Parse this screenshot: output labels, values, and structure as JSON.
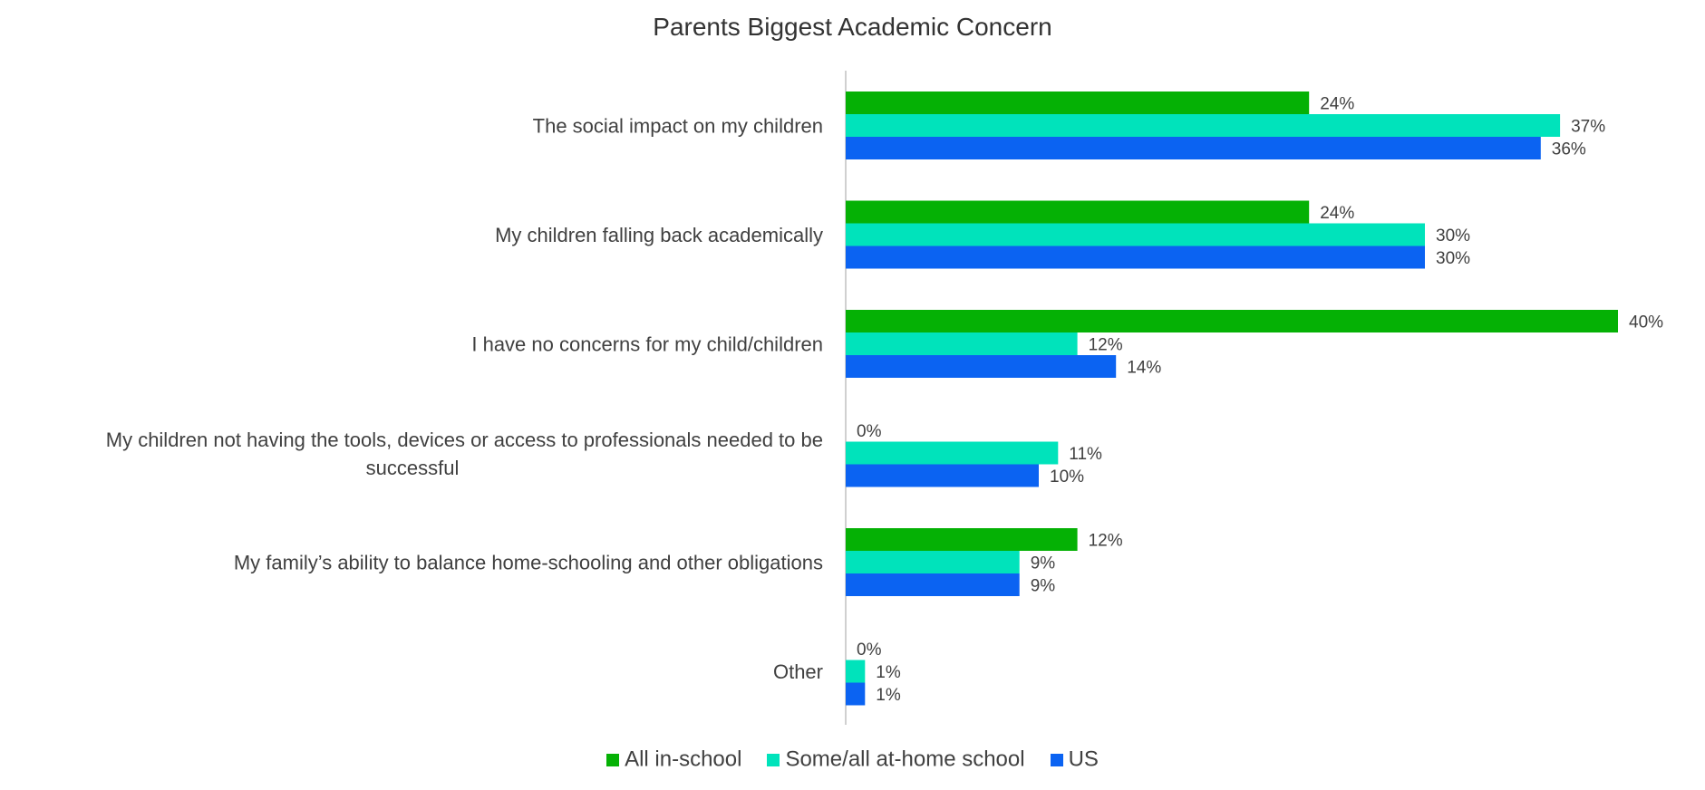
{
  "chart_data": {
    "type": "bar",
    "orientation": "horizontal",
    "title": "Parents Biggest Academic Concern",
    "categories": [
      "The social impact on my children",
      "My children falling back academically",
      "I have no concerns for my child/children",
      "My children not having the tools, devices or access to professionals needed to be successful",
      "My family’s ability to balance home-schooling and other obligations",
      "Other"
    ],
    "series": [
      {
        "name": "All in-school",
        "color": "#05B105",
        "values": [
          24,
          24,
          40,
          0,
          12,
          0
        ]
      },
      {
        "name": "Some/all at-home school",
        "color": "#00E3BB",
        "values": [
          37,
          30,
          12,
          11,
          9,
          1
        ]
      },
      {
        "name": "US",
        "color": "#0B63F2",
        "values": [
          36,
          30,
          14,
          10,
          9,
          1
        ]
      }
    ],
    "value_suffix": "%",
    "xlim": [
      0,
      40
    ],
    "grid": false,
    "legend_position": "bottom"
  }
}
